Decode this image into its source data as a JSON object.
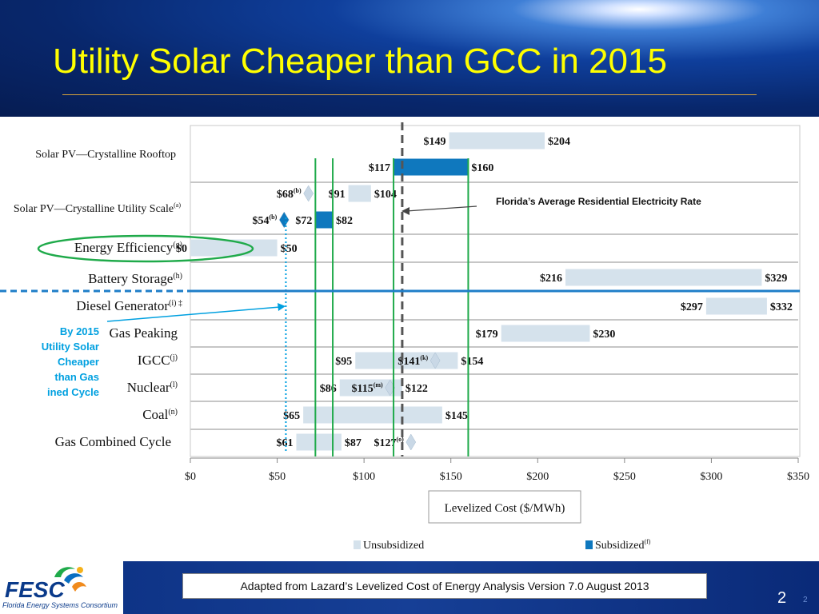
{
  "title": "Utility Solar Cheaper than GCC in 2015",
  "colors": {
    "title": "#ffff00",
    "unsubsidized_bar": "#d5e2ec",
    "subsidized_bar": "#0f78be",
    "green_line": "#1faa4a",
    "blue_line": "#1e7ec8",
    "annotation_blue": "#00a0e0"
  },
  "chart_data": {
    "type": "bar",
    "subtype": "floating-range-bar",
    "xlabel": "Levelized Cost ($/MWh)",
    "xlim": [
      0,
      350
    ],
    "x_ticks": [
      0,
      50,
      100,
      150,
      200,
      250,
      300,
      350
    ],
    "x_tick_labels": [
      "$0",
      "$50",
      "$100",
      "$150",
      "$200",
      "$250",
      "$300",
      "$350"
    ],
    "categories": [
      {
        "label": "Solar PV—Crystalline Rooftop",
        "sup": ""
      },
      {
        "label": "Solar PV—Crystalline Utility Scale",
        "sup": "(a)"
      },
      {
        "label": "Energy Efficiency",
        "sup": "(g)"
      },
      {
        "label": "Battery Storage",
        "sup": "(h)"
      },
      {
        "label": "Diesel Generator",
        "sup": "(i) ‡"
      },
      {
        "label": "Gas Peaking",
        "sup": ""
      },
      {
        "label": "IGCC",
        "sup": "(j)"
      },
      {
        "label": "Nuclear",
        "sup": "(l)"
      },
      {
        "label": "Coal",
        "sup": "(n)"
      },
      {
        "label": "Gas Combined Cycle",
        "sup": ""
      }
    ],
    "series": [
      {
        "name": "Unsubsidized",
        "bars": [
          {
            "category": 0,
            "row": 0,
            "low": 149,
            "high": 204,
            "low_label": "$149",
            "high_label": "$204"
          },
          {
            "category": 1,
            "row": 0,
            "low": 91,
            "high": 104,
            "low_label": "$91",
            "high_label": "$104"
          },
          {
            "category": 2,
            "row": 0,
            "low": 0,
            "high": 50,
            "low_label": "$0",
            "high_label": "$50"
          },
          {
            "category": 3,
            "row": 0,
            "low": 216,
            "high": 329,
            "low_label": "$216",
            "high_label": "$329"
          },
          {
            "category": 4,
            "row": 0,
            "low": 297,
            "high": 332,
            "low_label": "$297",
            "high_label": "$332"
          },
          {
            "category": 5,
            "row": 0,
            "low": 179,
            "high": 230,
            "low_label": "$179",
            "high_label": "$230"
          },
          {
            "category": 6,
            "row": 0,
            "low": 95,
            "high": 154,
            "low_label": "$95",
            "high_label": "$154"
          },
          {
            "category": 7,
            "row": 0,
            "low": 86,
            "high": 122,
            "low_label": "$86",
            "high_label": "$122"
          },
          {
            "category": 8,
            "row": 0,
            "low": 65,
            "high": 145,
            "low_label": "$65",
            "high_label": "$145"
          },
          {
            "category": 9,
            "row": 0,
            "low": 61,
            "high": 87,
            "low_label": "$61",
            "high_label": "$87"
          }
        ]
      },
      {
        "name": "Subsidized",
        "sup": "(f)",
        "bars": [
          {
            "category": 0,
            "row": 1,
            "low": 117,
            "high": 160,
            "low_label": "$117",
            "high_label": "$160"
          },
          {
            "category": 1,
            "row": 1,
            "low": 72,
            "high": 82,
            "low_label": "$72",
            "high_label": "$82"
          }
        ]
      }
    ],
    "markers": [
      {
        "category": 1,
        "row": 0,
        "value": 68,
        "label": "$68",
        "sup": "(b)",
        "kind": "light-diamond"
      },
      {
        "category": 1,
        "row": 1,
        "value": 54,
        "label": "$54",
        "sup": "(b)",
        "kind": "blue-diamond"
      },
      {
        "category": 6,
        "row": 0,
        "value": 141,
        "label": "$141",
        "sup": "(k)",
        "kind": "light-diamond"
      },
      {
        "category": 7,
        "row": 0,
        "value": 115,
        "label": "$115",
        "sup": "(m)",
        "kind": "light-diamond"
      },
      {
        "category": 9,
        "row": 0,
        "value": 127,
        "label": "$127",
        "sup": "(o)",
        "kind": "light-diamond"
      }
    ],
    "reference_lines": [
      {
        "value": 122,
        "style": "dashed-dark"
      },
      {
        "value": 55,
        "style": "dotted-blue"
      },
      {
        "value": 72,
        "style": "green"
      },
      {
        "value": 82,
        "style": "green"
      },
      {
        "value": 117,
        "style": "green"
      },
      {
        "value": 160,
        "style": "green"
      }
    ],
    "legend": [
      {
        "name": "Unsubsidized",
        "sup": ""
      },
      {
        "name": "Subsidized",
        "sup": "(f)"
      }
    ],
    "legend_position": "bottom",
    "grid": false
  },
  "annotations": {
    "florida_rate": "Florida’s Average Residential Electricity Rate",
    "by_2015": [
      "By 2015",
      "Utility Solar",
      "Cheaper",
      "than Gas",
      "ined Cycle"
    ]
  },
  "footer": {
    "source": "Adapted from Lazard’s Levelized Cost of Energy Analysis Version 7.0 August 2013",
    "page": "2",
    "page_small": "2",
    "logo_text": "FESC",
    "logo_sub": "Florida Energy Systems Consortium"
  }
}
